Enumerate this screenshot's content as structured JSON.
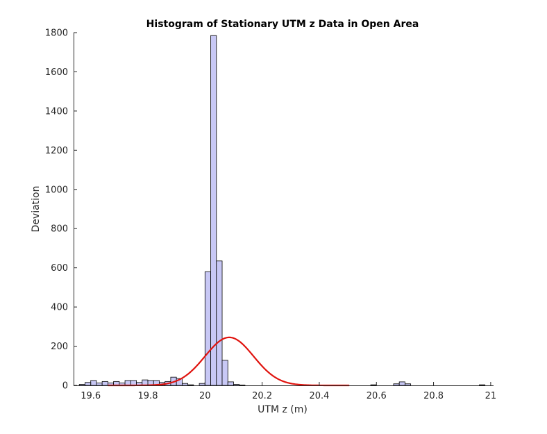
{
  "chart_data": {
    "type": "histogram",
    "title": "Histogram of Stationary UTM z Data in Open Area",
    "xlabel": "UTM z (m)",
    "ylabel": "Deviation",
    "xlim": [
      19.54,
      21.01
    ],
    "ylim": [
      0,
      1800
    ],
    "xticks": [
      19.6,
      19.8,
      20,
      20.2,
      20.4,
      20.6,
      20.8,
      21
    ],
    "xtick_labels": [
      "19.6",
      "19.8",
      "20",
      "20.2",
      "20.4",
      "20.6",
      "20.8",
      "21"
    ],
    "yticks": [
      0,
      200,
      400,
      600,
      800,
      1000,
      1200,
      1400,
      1600,
      1800
    ],
    "ytick_labels": [
      "0",
      "200",
      "400",
      "600",
      "800",
      "1000",
      "1200",
      "1400",
      "1600",
      "1800"
    ],
    "bin_width": 0.02,
    "bins": [
      {
        "x0": 19.56,
        "x1": 19.58,
        "count": 5
      },
      {
        "x0": 19.58,
        "x1": 19.6,
        "count": 15
      },
      {
        "x0": 19.6,
        "x1": 19.62,
        "count": 25
      },
      {
        "x0": 19.62,
        "x1": 19.64,
        "count": 12
      },
      {
        "x0": 19.64,
        "x1": 19.66,
        "count": 20
      },
      {
        "x0": 19.66,
        "x1": 19.68,
        "count": 12
      },
      {
        "x0": 19.68,
        "x1": 19.7,
        "count": 20
      },
      {
        "x0": 19.7,
        "x1": 19.72,
        "count": 12
      },
      {
        "x0": 19.72,
        "x1": 19.74,
        "count": 25
      },
      {
        "x0": 19.74,
        "x1": 19.76,
        "count": 25
      },
      {
        "x0": 19.76,
        "x1": 19.78,
        "count": 15
      },
      {
        "x0": 19.78,
        "x1": 19.8,
        "count": 28
      },
      {
        "x0": 19.8,
        "x1": 19.82,
        "count": 25
      },
      {
        "x0": 19.82,
        "x1": 19.84,
        "count": 25
      },
      {
        "x0": 19.84,
        "x1": 19.86,
        "count": 15
      },
      {
        "x0": 19.86,
        "x1": 19.88,
        "count": 20
      },
      {
        "x0": 19.88,
        "x1": 19.9,
        "count": 42
      },
      {
        "x0": 19.9,
        "x1": 19.92,
        "count": 35
      },
      {
        "x0": 19.92,
        "x1": 19.94,
        "count": 10
      },
      {
        "x0": 19.94,
        "x1": 19.96,
        "count": 3
      },
      {
        "x0": 19.98,
        "x1": 20.0,
        "count": 10
      },
      {
        "x0": 20.0,
        "x1": 20.02,
        "count": 580
      },
      {
        "x0": 20.02,
        "x1": 20.04,
        "count": 1785
      },
      {
        "x0": 20.04,
        "x1": 20.06,
        "count": 635
      },
      {
        "x0": 20.06,
        "x1": 20.08,
        "count": 128
      },
      {
        "x0": 20.08,
        "x1": 20.1,
        "count": 18
      },
      {
        "x0": 20.1,
        "x1": 20.12,
        "count": 5
      },
      {
        "x0": 20.12,
        "x1": 20.14,
        "count": 2
      },
      {
        "x0": 20.58,
        "x1": 20.6,
        "count": 3
      },
      {
        "x0": 20.66,
        "x1": 20.68,
        "count": 8
      },
      {
        "x0": 20.68,
        "x1": 20.7,
        "count": 18
      },
      {
        "x0": 20.7,
        "x1": 20.72,
        "count": 8
      },
      {
        "x0": 20.96,
        "x1": 20.98,
        "count": 3
      }
    ],
    "fit_curve": {
      "type": "normal",
      "mean": 20.085,
      "sigma": 0.085,
      "peak": 245,
      "x_range": [
        19.66,
        20.505
      ]
    },
    "colors": {
      "bar_fill": "#c8c8f5",
      "bar_edge": "#000000",
      "fit_line": "#e0140f",
      "axis": "#262626"
    },
    "grid": false
  }
}
